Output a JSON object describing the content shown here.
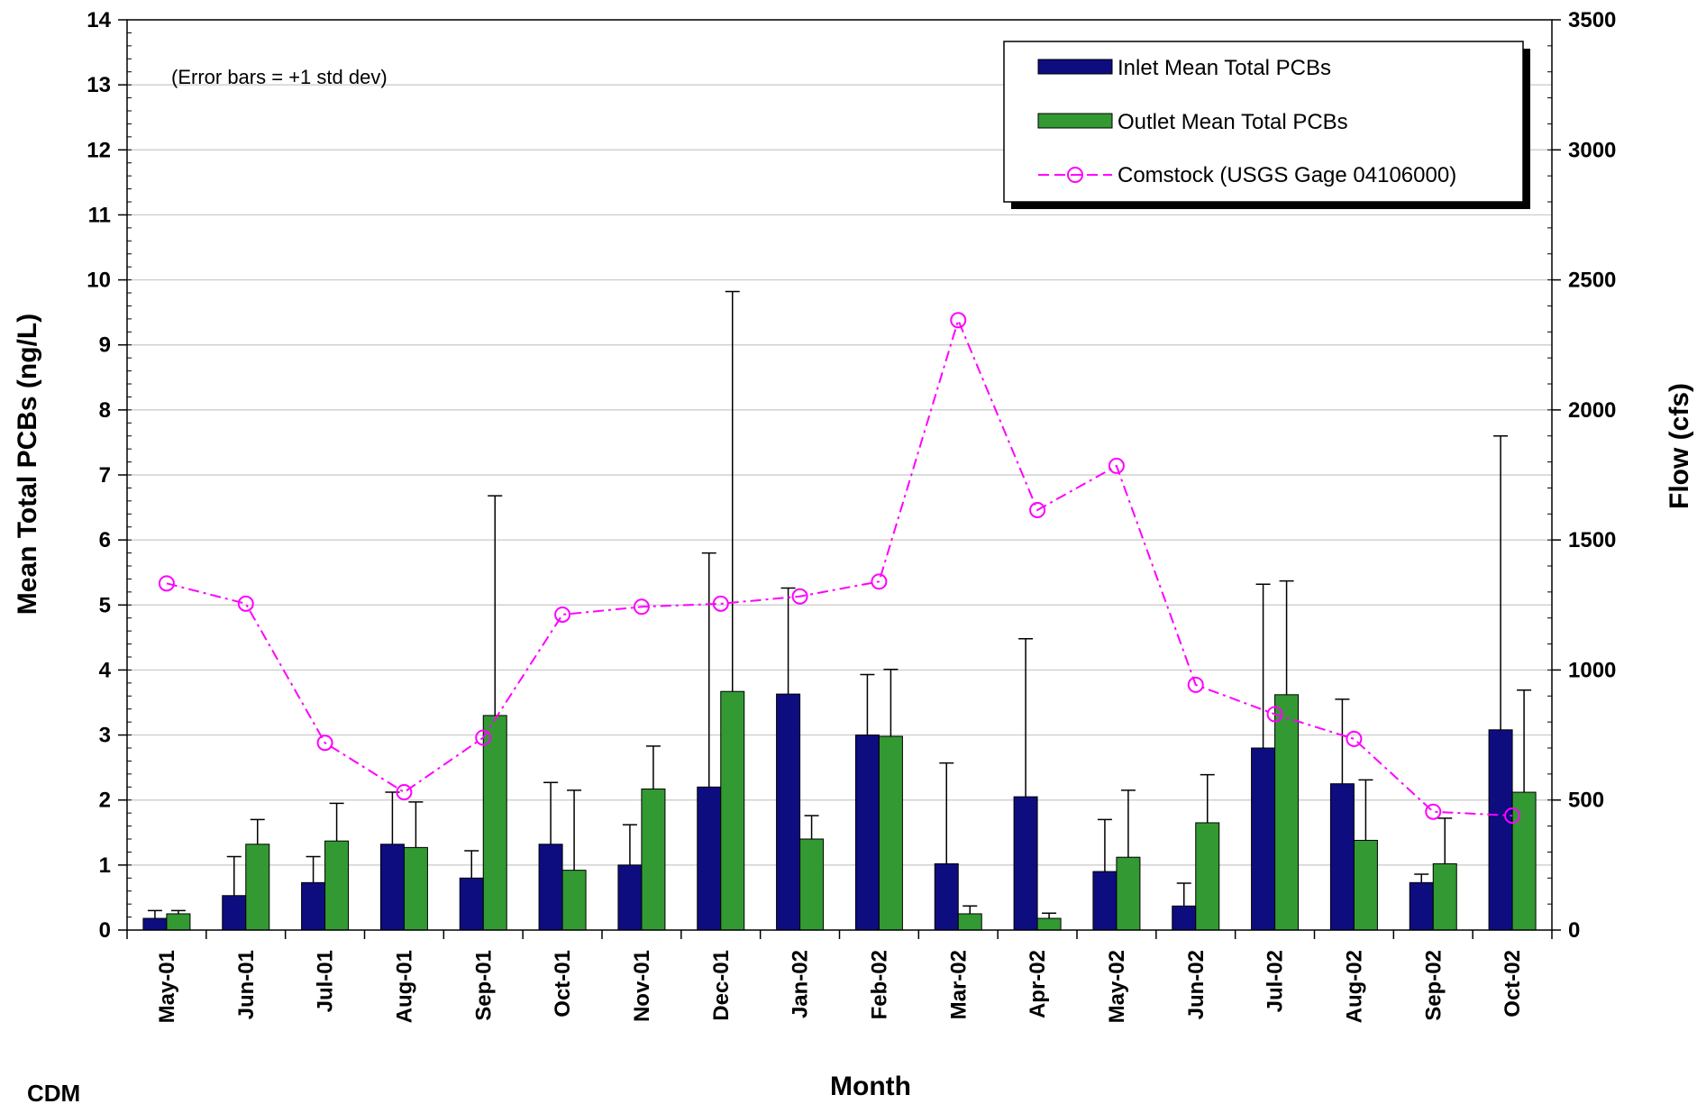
{
  "chart_data": {
    "type": "bar",
    "categories": [
      "May-01",
      "Jun-01",
      "Jul-01",
      "Aug-01",
      "Sep-01",
      "Oct-01",
      "Nov-01",
      "Dec-01",
      "Jan-02",
      "Feb-02",
      "Mar-02",
      "Apr-02",
      "May-02",
      "Jun-02",
      "Jul-02",
      "Aug-02",
      "Sep-02",
      "Oct-02"
    ],
    "series": [
      {
        "name": "Inlet Mean Total PCBs",
        "axis": "left",
        "color": "#0d0d80",
        "values": [
          0.18,
          0.53,
          0.73,
          1.32,
          0.8,
          1.32,
          1.0,
          2.2,
          3.63,
          3.0,
          1.02,
          2.05,
          0.9,
          0.37,
          2.8,
          2.25,
          0.73,
          3.08
        ],
        "error_plus": [
          0.12,
          0.6,
          0.4,
          0.8,
          0.42,
          0.95,
          0.62,
          3.6,
          1.63,
          0.93,
          1.55,
          2.43,
          0.8,
          0.35,
          2.52,
          1.3,
          0.13,
          4.52
        ]
      },
      {
        "name": "Outlet Mean Total PCBs",
        "axis": "left",
        "color": "#339933",
        "values": [
          0.25,
          1.32,
          1.37,
          1.27,
          3.3,
          0.92,
          2.17,
          3.67,
          1.4,
          2.98,
          0.25,
          0.18,
          1.12,
          1.65,
          3.62,
          1.38,
          1.02,
          2.12
        ],
        "error_plus": [
          0.05,
          0.38,
          0.58,
          0.7,
          3.38,
          1.23,
          0.66,
          6.15,
          0.36,
          1.03,
          0.12,
          0.08,
          1.03,
          0.74,
          1.75,
          0.93,
          0.7,
          1.57
        ]
      },
      {
        "name": "Comstock (USGS Gage 04106000)",
        "axis": "right",
        "color": "#ff00ff",
        "type": "line",
        "values": [
          1333,
          1255,
          720,
          530,
          740,
          1213,
          1243,
          1255,
          1283,
          1340,
          2345,
          1615,
          1785,
          943,
          830,
          735,
          455,
          440
        ]
      }
    ],
    "title": "",
    "annotation": "(Error bars = +1 std dev)",
    "xlabel": "Month",
    "ylabel": "Mean Total PCBs (ng/L)",
    "y2label": "Flow (cfs)",
    "ylim": [
      0,
      14
    ],
    "y2lim": [
      0,
      3500
    ],
    "yticks": [
      0,
      1,
      2,
      3,
      4,
      5,
      6,
      7,
      8,
      9,
      10,
      11,
      12,
      13,
      14
    ],
    "y2ticks": [
      0,
      500,
      1000,
      1500,
      2000,
      2500,
      3000,
      3500
    ],
    "grid": true,
    "legend_position": "top-right"
  },
  "logo_text": "CDM"
}
